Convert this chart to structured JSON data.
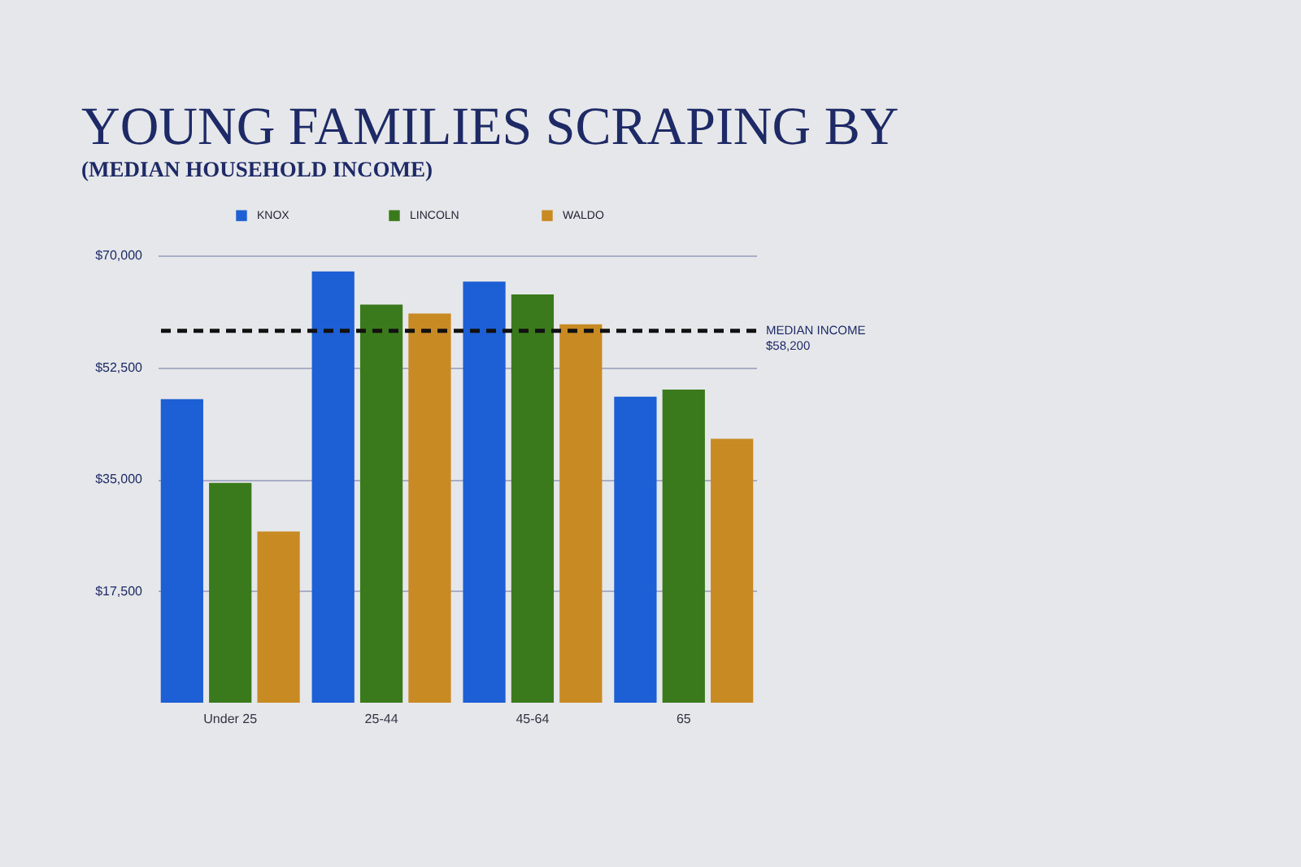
{
  "chart_data": {
    "type": "bar",
    "title": "YOUNG FAMILIES SCRAPING BY",
    "subtitle": "(MEDIAN HOUSEHOLD INCOME)",
    "categories": [
      "Under 25",
      "25-44",
      "45-64",
      "65"
    ],
    "series": [
      {
        "name": "KNOX",
        "color": "#1d5fd4",
        "values": [
          47500,
          67500,
          65900,
          47900
        ]
      },
      {
        "name": "LINCOLN",
        "color": "#3a7a1c",
        "values": [
          34400,
          62300,
          63900,
          49000
        ]
      },
      {
        "name": "WALDO",
        "color": "#c88a22",
        "values": [
          26800,
          60900,
          59200,
          41300
        ]
      }
    ],
    "ylim": [
      0,
      70000
    ],
    "yticks": [
      {
        "value": 17500,
        "label": "$17,500"
      },
      {
        "value": 35000,
        "label": "$35,000"
      },
      {
        "value": 52500,
        "label": "$52,500"
      },
      {
        "value": 70000,
        "label": "$70,000"
      }
    ],
    "ref_lines": [
      {
        "axis": "y",
        "value": 58200,
        "label": "MEDIAN INCOME\n$58,200",
        "color": "#111111",
        "line_style": "dashed"
      }
    ],
    "grid": "y",
    "legend": "top"
  }
}
